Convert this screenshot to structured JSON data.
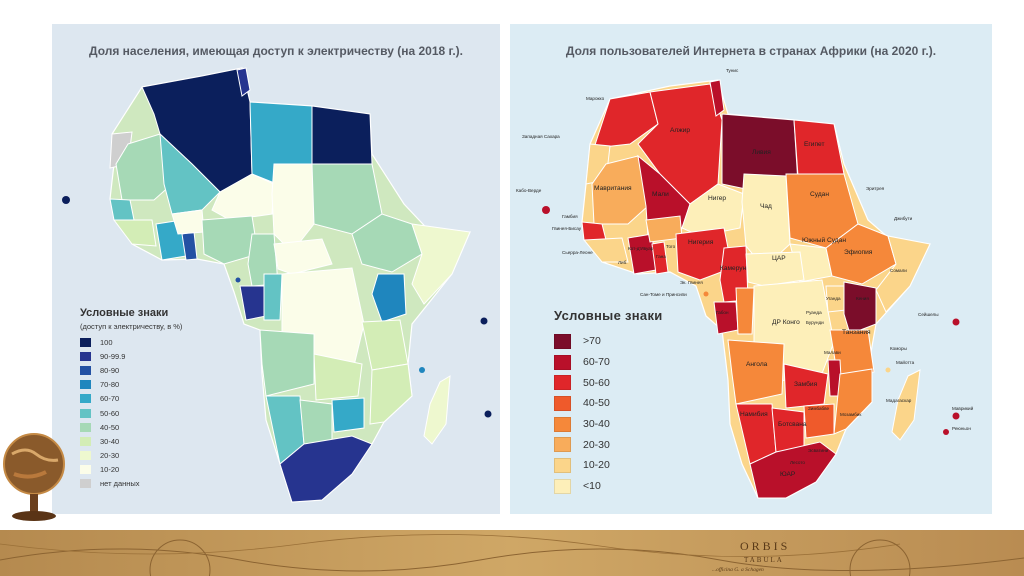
{
  "left_map": {
    "title": "Доля населения, имеющая доступ к электричеству (на 2018 г.).",
    "legend": {
      "title": "Условные знаки",
      "subtitle": "(доступ к электричеству, в %)",
      "items": [
        {
          "label": "100",
          "color": "#0b1f5c"
        },
        {
          "label": "90-99.9",
          "color": "#26348f"
        },
        {
          "label": "80-90",
          "color": "#2351a3"
        },
        {
          "label": "70-80",
          "color": "#1f86be"
        },
        {
          "label": "60-70",
          "color": "#35a9c8"
        },
        {
          "label": "50-60",
          "color": "#63c3c4"
        },
        {
          "label": "40-50",
          "color": "#a6d9b6"
        },
        {
          "label": "30-40",
          "color": "#d3edb6"
        },
        {
          "label": "20-30",
          "color": "#eef8cf"
        },
        {
          "label": "10-20",
          "color": "#fbfde9"
        },
        {
          "label": "нет данных",
          "color": "#cfcfcf"
        }
      ]
    }
  },
  "right_map": {
    "title": "Доля пользователей Интернета в странах Африки (на 2020 г.).",
    "legend": {
      "title": "Условные знаки",
      "items": [
        {
          "label": ">70",
          "color": "#7b0d2a"
        },
        {
          "label": "60-70",
          "color": "#b9102a"
        },
        {
          "label": "50-60",
          "color": "#e0262a"
        },
        {
          "label": "40-50",
          "color": "#ef5a2b"
        },
        {
          "label": "30-40",
          "color": "#f5883a"
        },
        {
          "label": "20-30",
          "color": "#f8ac5b"
        },
        {
          "label": "10-20",
          "color": "#fbd58a"
        },
        {
          "label": "<10",
          "color": "#fdefb9"
        }
      ]
    },
    "country_labels": {
      "tunis": "Тунис",
      "morocco": "Марокко",
      "w_sahara": "Западная Сахара",
      "algeria": "Алжир",
      "libya": "Ливия",
      "egypt": "Египет",
      "cabo_verde": "Кабо-Верде",
      "mauritania": "Мавритания",
      "mali": "Мали",
      "niger": "Нигер",
      "chad": "Чад",
      "sudan": "Судан",
      "eritrea": "Эритрея",
      "djibouti": "Джибути",
      "gambia": "Гамбия",
      "guinea_bissau": "Гвинея-Бисау",
      "sierra_leone": "Сьерра-Леоне",
      "liberia": "Либ.",
      "cote": "Кот-д'Ивуар",
      "ghana": "Гана",
      "togo": "Того",
      "nigeria": "Нигерия",
      "cameroon": "Камерун",
      "car": "ЦАР",
      "south_sudan": "Южный Судан",
      "ethiopia": "Эфиопия",
      "somalia": "Сомали",
      "stp": "Сан-Томе и Принсипи",
      "eq_guinea": "Эк. Гвинея",
      "gabon": "Габон",
      "drc": "ДР Конго",
      "uganda": "Уганда",
      "kenya": "Кения",
      "rwanda": "Руанда",
      "burundi": "Бурунди",
      "tanzania": "Танзания",
      "seychelles": "Сейшелы",
      "angola": "Ангола",
      "zambia": "Замбия",
      "malawi": "Малави",
      "comoros": "Коморы",
      "mayotte": "Майотта",
      "namibia": "Намибия",
      "zimbabwe": "Зимбабве",
      "botswana": "Ботсвана",
      "mozambique": "Мозамбик",
      "madagascar": "Мадагаскар",
      "mauritius": "Маврикий",
      "reunion": "Реюньон",
      "eswatini": "Эсватини",
      "lesotho": "Лесото",
      "sar": "ЮАР"
    }
  },
  "banner": {
    "line1": "ORBIS",
    "line2": "TABULA",
    "line3": "...officina G. a Schagen"
  }
}
